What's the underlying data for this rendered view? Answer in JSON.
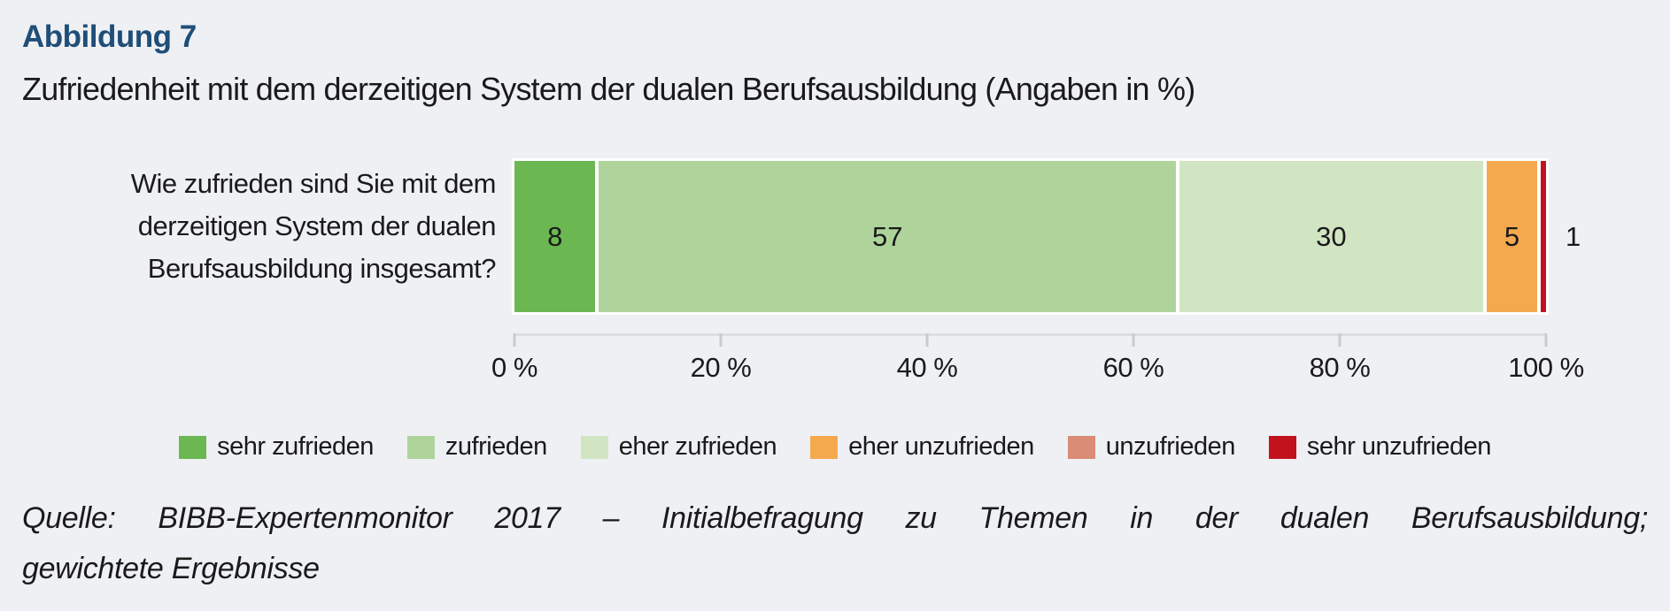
{
  "figure": {
    "label": "Abbildung 7",
    "title": "Zufriedenheit mit dem derzeitigen System der dualen Berufsausbildung (Angaben in %)"
  },
  "question": {
    "line1": "Wie zufrieden sind Sie mit dem",
    "line2": "derzeitigen System der dualen",
    "line3": "Berufsausbildung insgesamt?"
  },
  "chart_data": {
    "type": "bar",
    "variant": "horizontal-stacked",
    "title": "Zufriedenheit mit dem derzeitigen System der dualen Berufsausbildung (Angaben in %)",
    "category": "Wie zufrieden sind Sie mit dem derzeitigen System der dualen Berufsausbildung insgesamt?",
    "unit": "%",
    "series": [
      {
        "name": "sehr zufrieden",
        "value": 8,
        "color": "#6bb752"
      },
      {
        "name": "zufrieden",
        "value": 57,
        "color": "#aed49b"
      },
      {
        "name": "eher zufrieden",
        "value": 30,
        "color": "#d2e5c3"
      },
      {
        "name": "eher unzufrieden",
        "value": 5,
        "color": "#f5a94f"
      },
      {
        "name": "unzufrieden",
        "value": null,
        "color": "#da8c77"
      },
      {
        "name": "sehr unzufrieden",
        "value": 1,
        "color": "#c1121e"
      }
    ],
    "xlim": [
      0,
      100
    ],
    "x_ticks": [
      "0 %",
      "20 %",
      "40 %",
      "60 %",
      "80 %",
      "100 %"
    ],
    "legend_position": "bottom-center",
    "grid": false
  },
  "source": {
    "line1": "Quelle: BIBB-Expertenmonitor 2017 – Initialbefragung zu Themen in der dualen Berufsausbildung;",
    "line2": "gewichtete Ergebnisse"
  },
  "colors": {
    "background": "#eef0f3",
    "heading": "#1f4e78",
    "text": "#1a1a1a",
    "bar_border": "#ffffff",
    "axis_line": "#dcdee0"
  }
}
